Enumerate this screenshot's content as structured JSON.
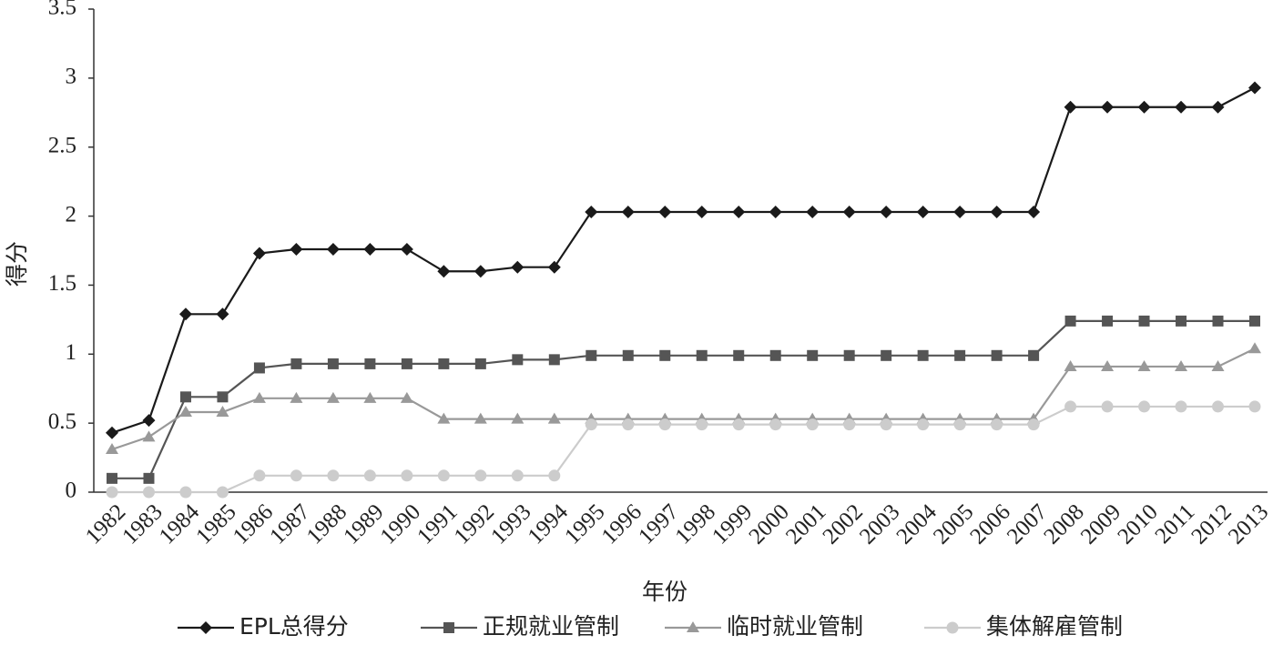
{
  "chart_data": {
    "type": "line",
    "x_label": "年份",
    "y_label": "得分",
    "categories": [
      "1982",
      "1983",
      "1984",
      "1985",
      "1986",
      "1987",
      "1988",
      "1989",
      "1990",
      "1991",
      "1992",
      "1993",
      "1994",
      "1995",
      "1996",
      "1997",
      "1998",
      "1999",
      "2000",
      "2001",
      "2002",
      "2003",
      "2004",
      "2005",
      "2006",
      "2007",
      "2008",
      "2009",
      "2010",
      "2011",
      "2012",
      "2013"
    ],
    "ylim": [
      0,
      3.5
    ],
    "yticks": [
      0,
      0.5,
      1,
      1.5,
      2,
      2.5,
      3,
      3.5
    ],
    "grid": false,
    "legend": "bottom",
    "series": [
      {
        "name": "EPL总得分",
        "color": "#1a1a1a",
        "marker": "diamond",
        "values": [
          0.43,
          0.52,
          1.29,
          1.29,
          1.73,
          1.76,
          1.76,
          1.76,
          1.76,
          1.6,
          1.6,
          1.63,
          1.63,
          2.03,
          2.03,
          2.03,
          2.03,
          2.03,
          2.03,
          2.03,
          2.03,
          2.03,
          2.03,
          2.03,
          2.03,
          2.03,
          2.79,
          2.79,
          2.79,
          2.79,
          2.79,
          2.93
        ]
      },
      {
        "name": "正规就业管制",
        "color": "#555555",
        "marker": "square",
        "values": [
          0.1,
          0.1,
          0.69,
          0.69,
          0.9,
          0.93,
          0.93,
          0.93,
          0.93,
          0.93,
          0.93,
          0.96,
          0.96,
          0.99,
          0.99,
          0.99,
          0.99,
          0.99,
          0.99,
          0.99,
          0.99,
          0.99,
          0.99,
          0.99,
          0.99,
          0.99,
          1.24,
          1.24,
          1.24,
          1.24,
          1.24,
          1.24
        ]
      },
      {
        "name": "临时就业管制",
        "color": "#999999",
        "marker": "triangle",
        "values": [
          0.31,
          0.4,
          0.58,
          0.58,
          0.68,
          0.68,
          0.68,
          0.68,
          0.68,
          0.53,
          0.53,
          0.53,
          0.53,
          0.53,
          0.53,
          0.53,
          0.53,
          0.53,
          0.53,
          0.53,
          0.53,
          0.53,
          0.53,
          0.53,
          0.53,
          0.53,
          0.91,
          0.91,
          0.91,
          0.91,
          0.91,
          1.04
        ]
      },
      {
        "name": "集体解雇管制",
        "color": "#cccccc",
        "marker": "circle",
        "values": [
          0,
          0,
          0,
          0,
          0.12,
          0.12,
          0.12,
          0.12,
          0.12,
          0.12,
          0.12,
          0.12,
          0.12,
          0.49,
          0.49,
          0.49,
          0.49,
          0.49,
          0.49,
          0.49,
          0.49,
          0.49,
          0.49,
          0.49,
          0.49,
          0.49,
          0.62,
          0.62,
          0.62,
          0.62,
          0.62,
          0.62
        ]
      }
    ]
  }
}
